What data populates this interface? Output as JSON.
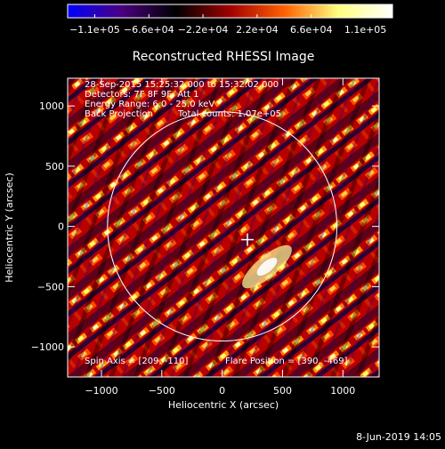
{
  "chart_data": {
    "type": "heatmap",
    "title": "Reconstructed RHESSI Image",
    "xlabel": "Heliocentric X (arcsec)",
    "ylabel": "Heliocentric Y (arcsec)",
    "xlim": [
      -1280,
      1300
    ],
    "ylim": [
      -1250,
      1230
    ],
    "x_ticks": [
      {
        "value": -1000,
        "label": "−1000"
      },
      {
        "value": -500,
        "label": "−500"
      },
      {
        "value": 0,
        "label": "0"
      },
      {
        "value": 500,
        "label": "500"
      },
      {
        "value": 1000,
        "label": "1000"
      }
    ],
    "y_ticks": [
      {
        "value": 1000,
        "label": "1000"
      },
      {
        "value": 500,
        "label": "500"
      },
      {
        "value": 0,
        "label": "0"
      },
      {
        "value": -500,
        "label": "−500"
      },
      {
        "value": -1000,
        "label": "−1000"
      }
    ],
    "colorbar": {
      "min": -110000,
      "max": 110000,
      "tick_labels": [
        "−1.1e+05",
        "−6.6e+04",
        "−2.2e+04",
        "2.2e+04",
        "6.6e+04",
        "1.1e+05"
      ],
      "colors": [
        "#0000ff",
        "#4a0080",
        "#000000",
        "#a00000",
        "#ff6000",
        "#ffff80",
        "#ffffff"
      ]
    },
    "annotations": {
      "time_range": "28-Sep-2015 15:25:32.000 to 15:32:02.000",
      "detectors": "Detectors: 7F 8F 9F, Att 1",
      "energy_range": "Energy Range: 6.0 - 25.0 keV",
      "method": "Back Projection",
      "total_counts": "Total counts: 1.07e+05",
      "spin_axis": "Spin Axis = [209, -110]",
      "flare_position": "Flare Position = [390, -469]"
    },
    "solar_limb_radius": 950,
    "spin_axis_marker": [
      209,
      -110
    ]
  },
  "footer": {
    "date": "8-Jun-2019 14:05"
  }
}
